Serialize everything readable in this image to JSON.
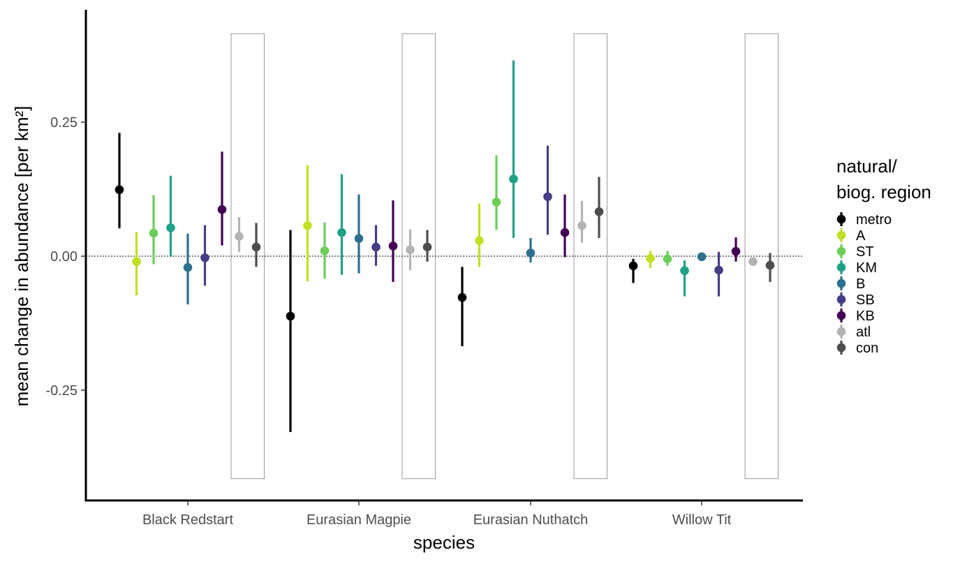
{
  "chart_data": {
    "type": "scatter",
    "subtype": "pointrange-dodged",
    "title": "",
    "xlabel": "species",
    "ylabel": "mean change in abundance [per km²]",
    "ylim": [
      -0.455,
      0.46
    ],
    "y_ticks": [
      0.25,
      0.0,
      -0.25
    ],
    "y_tick_labels": [
      "0.25",
      "0.00",
      "-0.25"
    ],
    "reference_line": {
      "y": 0,
      "style": "dotted"
    },
    "highlight_boxes": {
      "series": [
        "atl",
        "con"
      ],
      "ymin": -0.415,
      "ymax": 0.415
    },
    "grid": false,
    "categories": [
      "Black Redstart",
      "Eurasian Magpie",
      "Eurasian Nuthatch",
      "Willow Tit"
    ],
    "legend": {
      "title_lines": [
        "natural/",
        "biog. region"
      ],
      "position": "right"
    },
    "series": [
      {
        "name": "metro",
        "color": "#000000",
        "mean": [
          0.124,
          -0.112,
          -0.077,
          -0.018
        ],
        "lower": [
          0.052,
          -0.328,
          -0.168,
          -0.05
        ],
        "upper": [
          0.23,
          0.049,
          -0.02,
          -0.005
        ]
      },
      {
        "name": "A",
        "color": "#C2DF23",
        "mean": [
          -0.01,
          0.057,
          0.029,
          -0.004
        ],
        "lower": [
          -0.073,
          -0.047,
          -0.02,
          -0.022
        ],
        "upper": [
          0.045,
          0.17,
          0.098,
          0.01
        ]
      },
      {
        "name": "ST",
        "color": "#6CCE59",
        "mean": [
          0.043,
          0.01,
          0.101,
          -0.005
        ],
        "lower": [
          -0.015,
          -0.042,
          0.049,
          -0.018
        ],
        "upper": [
          0.114,
          0.063,
          0.188,
          0.01
        ]
      },
      {
        "name": "KM",
        "color": "#1FA187",
        "mean": [
          0.053,
          0.044,
          0.144,
          -0.027
        ],
        "lower": [
          -0.001,
          -0.035,
          0.034,
          -0.075
        ],
        "upper": [
          0.15,
          0.153,
          0.365,
          -0.008
        ]
      },
      {
        "name": "B",
        "color": "#2D708E",
        "mean": [
          -0.021,
          0.033,
          0.006,
          -0.001
        ],
        "lower": [
          -0.09,
          -0.032,
          -0.012,
          -0.003
        ],
        "upper": [
          0.042,
          0.115,
          0.034,
          0.002
        ]
      },
      {
        "name": "SB",
        "color": "#433E85",
        "mean": [
          -0.003,
          0.017,
          0.111,
          -0.026
        ],
        "lower": [
          -0.055,
          -0.018,
          0.04,
          -0.075
        ],
        "upper": [
          0.058,
          0.058,
          0.206,
          0.008
        ]
      },
      {
        "name": "KB",
        "color": "#440154",
        "mean": [
          0.087,
          0.019,
          0.044,
          0.009
        ],
        "lower": [
          0.02,
          -0.048,
          -0.002,
          -0.01
        ],
        "upper": [
          0.195,
          0.104,
          0.115,
          0.035
        ]
      },
      {
        "name": "atl",
        "color": "#B3B3B3",
        "mean": [
          0.037,
          0.012,
          0.057,
          -0.01
        ],
        "lower": [
          0.008,
          -0.026,
          0.025,
          -0.014
        ],
        "upper": [
          0.073,
          0.05,
          0.103,
          -0.005
        ]
      },
      {
        "name": "con",
        "color": "#4D4D4D",
        "mean": [
          0.017,
          0.017,
          0.083,
          -0.017
        ],
        "lower": [
          -0.02,
          -0.01,
          0.034,
          -0.048
        ],
        "upper": [
          0.062,
          0.049,
          0.148,
          0.006
        ]
      }
    ]
  }
}
